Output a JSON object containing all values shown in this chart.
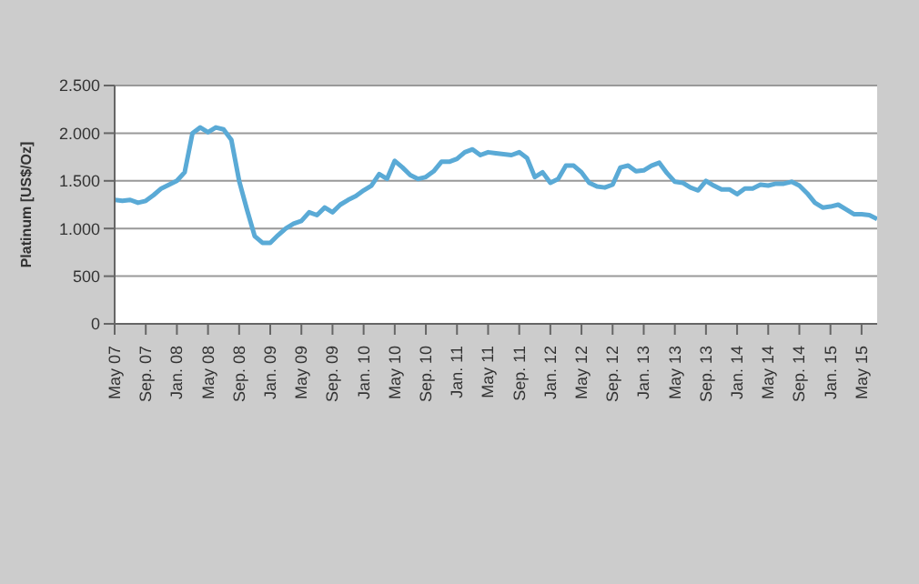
{
  "chart_data": {
    "type": "line",
    "ylabel": "Platinum [US$/Oz]",
    "categories": [
      "May 07",
      null,
      null,
      null,
      "Sep. 07",
      null,
      null,
      null,
      "Jan. 08",
      null,
      null,
      null,
      "May 08",
      null,
      null,
      null,
      "Sep. 08",
      null,
      null,
      null,
      "Jan. 09",
      null,
      null,
      null,
      "May 09",
      null,
      null,
      null,
      "Sep. 09",
      null,
      null,
      null,
      "Jan. 10",
      null,
      null,
      null,
      "May 10",
      null,
      null,
      null,
      "Sep. 10",
      null,
      null,
      null,
      "Jan. 11",
      null,
      null,
      null,
      "May 11",
      null,
      null,
      null,
      "Sep. 11",
      null,
      null,
      null,
      "Jan. 12",
      null,
      null,
      null,
      "May 12",
      null,
      null,
      null,
      "Sep. 12",
      null,
      null,
      null,
      "Jan. 13",
      null,
      null,
      null,
      "May 13",
      null,
      null,
      null,
      "Sep. 13",
      null,
      null,
      null,
      "Jan. 14",
      null,
      null,
      null,
      "May 14",
      null,
      null,
      null,
      "Sep. 14",
      null,
      null,
      null,
      "Jan. 15",
      null,
      null,
      null,
      "May 15",
      null,
      null
    ],
    "series": [
      {
        "color": "#5aaad6",
        "values": [
          1300,
          1290,
          1300,
          1270,
          1290,
          1350,
          1420,
          1460,
          1500,
          1590,
          2000,
          2060,
          2010,
          2060,
          2040,
          1930,
          1500,
          1200,
          920,
          850,
          850,
          930,
          1000,
          1050,
          1080,
          1170,
          1140,
          1220,
          1170,
          1250,
          1300,
          1340,
          1400,
          1450,
          1570,
          1520,
          1710,
          1640,
          1560,
          1520,
          1540,
          1600,
          1700,
          1700,
          1730,
          1800,
          1830,
          1770,
          1800,
          1790,
          1780,
          1770,
          1800,
          1740,
          1540,
          1590,
          1480,
          1520,
          1660,
          1660,
          1590,
          1480,
          1440,
          1430,
          1460,
          1640,
          1660,
          1600,
          1610,
          1660,
          1690,
          1580,
          1490,
          1480,
          1430,
          1400,
          1500,
          1450,
          1410,
          1410,
          1360,
          1420,
          1420,
          1460,
          1450,
          1470,
          1470,
          1490,
          1450,
          1370,
          1270,
          1220,
          1230,
          1250,
          1200,
          1150,
          1150,
          1140,
          1100
        ]
      }
    ],
    "ylim": [
      0,
      2500
    ],
    "yticks": [
      0,
      {
        "value": 500,
        "label": "500"
      },
      {
        "value": 1000,
        "label": "1.000"
      },
      {
        "value": 1500,
        "label": "1.500"
      },
      {
        "value": 2000,
        "label": "2.000"
      },
      {
        "value": 2500,
        "label": "2.500"
      }
    ],
    "grid": "y",
    "legend": false,
    "marker": "none",
    "line_style": "solid"
  }
}
